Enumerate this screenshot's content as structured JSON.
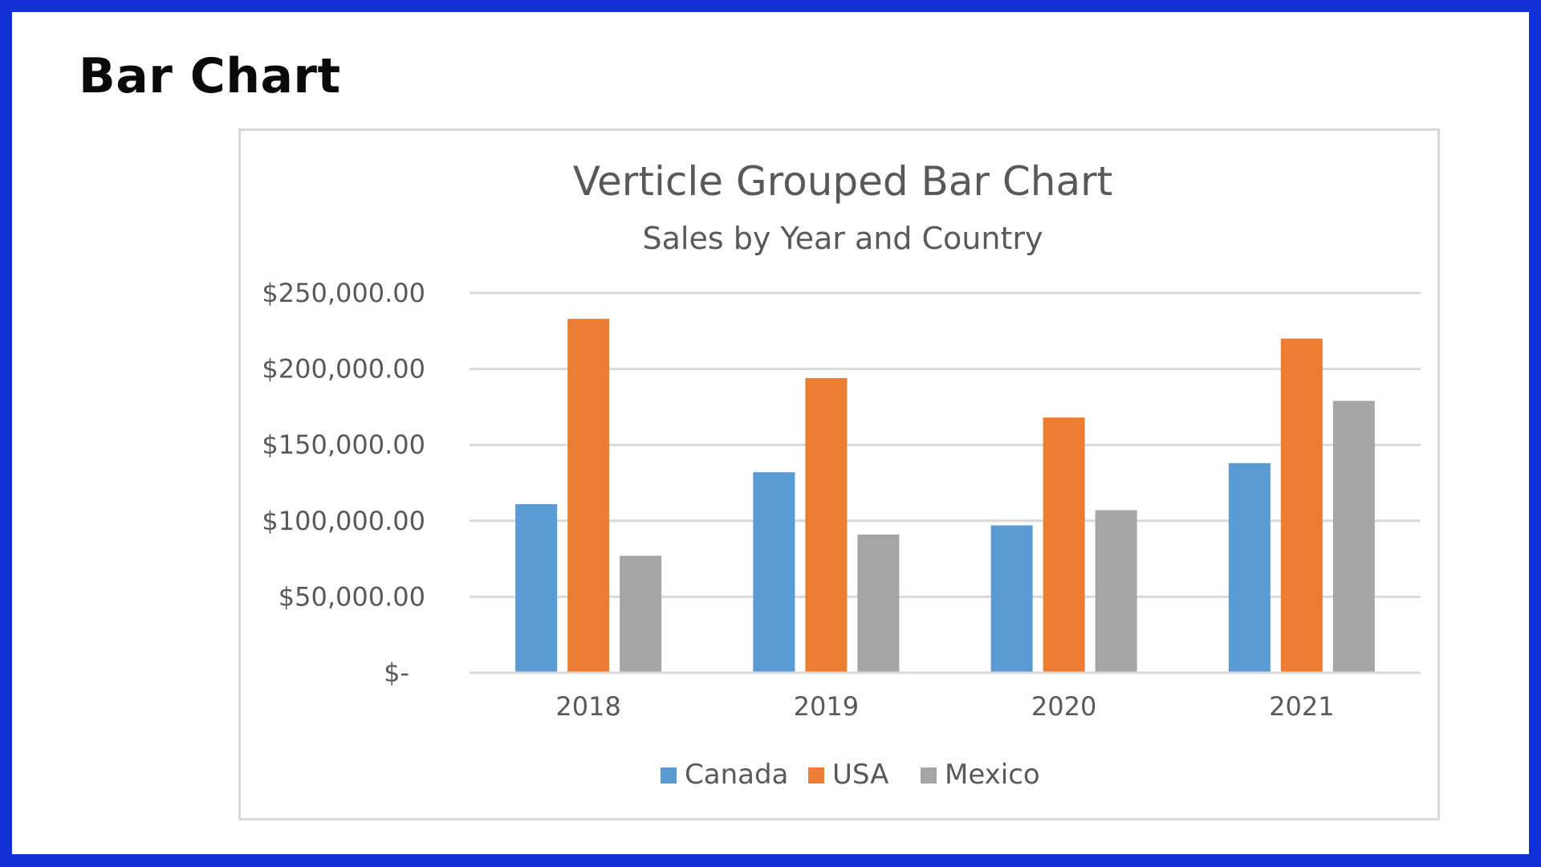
{
  "page": {
    "heading": "Bar Chart"
  },
  "chart_data": {
    "type": "bar",
    "title": "Verticle Grouped Bar Chart",
    "subtitle": "Sales by Year and Country",
    "categories": [
      "2018",
      "2019",
      "2020",
      "2021"
    ],
    "series": [
      {
        "name": "Canada",
        "color": "#5b9bd5",
        "values": [
          111000,
          132000,
          97000,
          138000
        ]
      },
      {
        "name": "USA",
        "color": "#ed7d31",
        "values": [
          233000,
          194000,
          168000,
          220000
        ]
      },
      {
        "name": "Mexico",
        "color": "#a5a5a5",
        "values": [
          77000,
          91000,
          107000,
          179000
        ]
      }
    ],
    "ylim": [
      0,
      250000
    ],
    "y_ticks": [
      0,
      50000,
      100000,
      150000,
      200000,
      250000
    ],
    "y_tick_labels": [
      "$-",
      "$50,000.00",
      "$100,000.00",
      "$150,000.00",
      "$200,000.00",
      "$250,000.00"
    ],
    "xlabel": "",
    "ylabel": "",
    "grid": true,
    "legend_position": "bottom"
  }
}
